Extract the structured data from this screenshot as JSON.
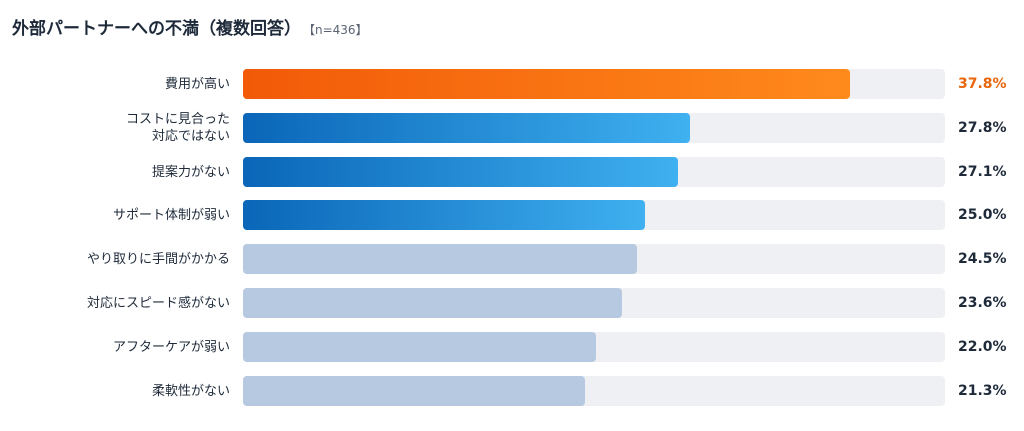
{
  "header": {
    "title": "外部パートナーへの不満（複数回答）",
    "note": "【n=436】"
  },
  "chart_data": {
    "type": "bar",
    "orientation": "horizontal",
    "title": "外部パートナーへの不満（複数回答）",
    "note": "【n=436】",
    "xlim": [
      0,
      43.7
    ],
    "categories": [
      "費用が高い",
      "コストに見合った\n対応ではない",
      "提案力がない",
      "サポート体制が弱い",
      "やり取りに手間がかかる",
      "対応にスピード感がない",
      "アフターケアが弱い",
      "柔軟性がない"
    ],
    "values": [
      37.8,
      27.8,
      27.1,
      25.0,
      24.5,
      23.6,
      22.0,
      21.3
    ],
    "value_labels": [
      "37.8%",
      "27.8%",
      "27.1%",
      "25.0%",
      "24.5%",
      "23.6%",
      "22.0%",
      "21.3%"
    ],
    "colors": {
      "highlight": "#f26a0a",
      "highlight_label": "#e8660c",
      "blue_gradient": [
        "#0a66b8",
        "#3fb0f0"
      ],
      "muted": "#b6c9e0",
      "track": "#eef0f4",
      "label": "#1e2a3a"
    },
    "bar_styles": [
      "highlight",
      "blue",
      "blue",
      "blue",
      "muted",
      "muted",
      "muted",
      "muted"
    ]
  }
}
